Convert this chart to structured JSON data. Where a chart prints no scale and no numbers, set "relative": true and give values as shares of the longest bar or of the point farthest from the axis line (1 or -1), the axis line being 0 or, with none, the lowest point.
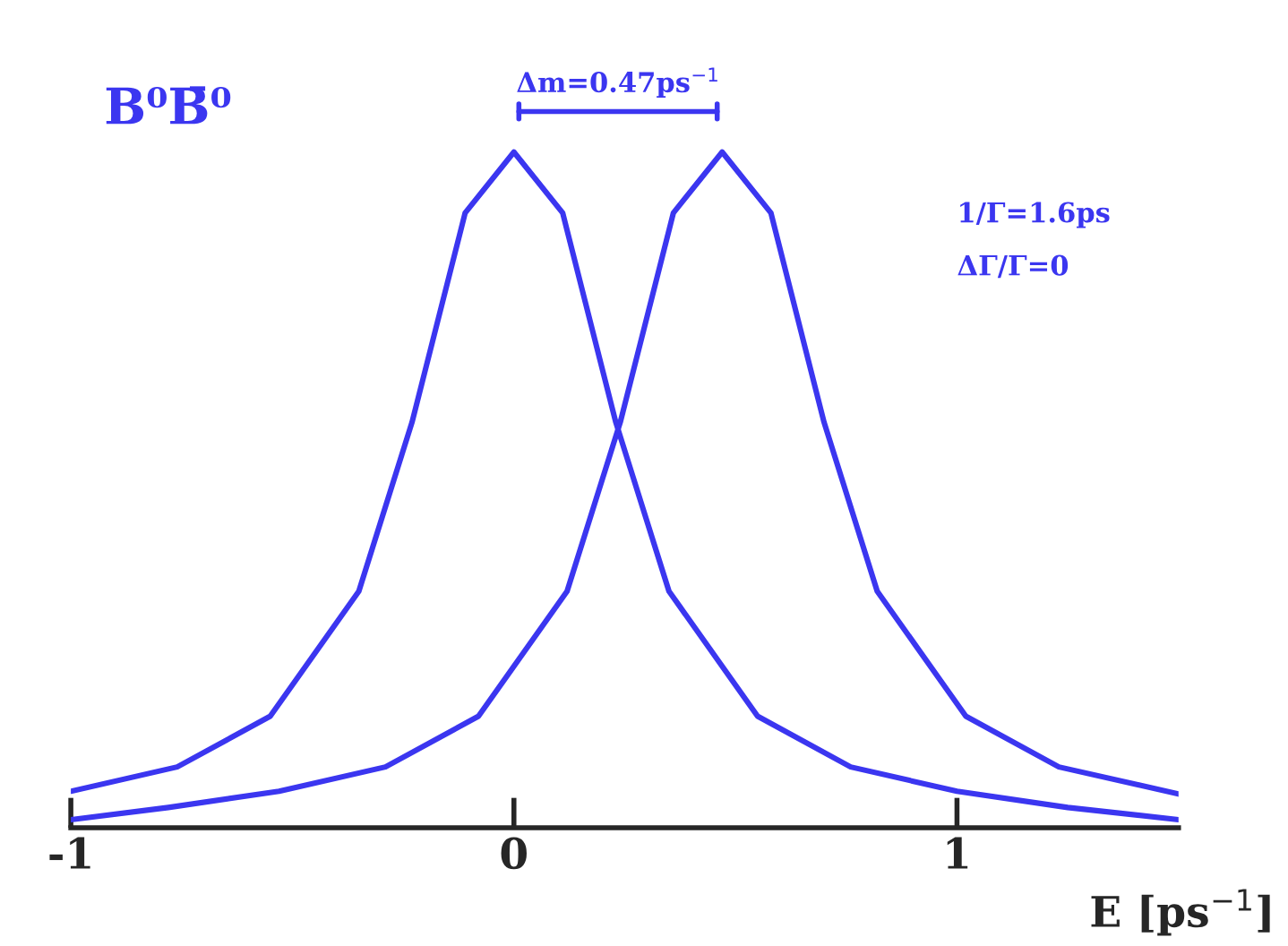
{
  "chart_data": {
    "type": "line",
    "relative": true,
    "title": "B⁰B̄⁰",
    "xlabel": "E [ps$^{−1}$]",
    "xlim": [
      -1,
      1.5
    ],
    "xticks": [
      -1,
      0,
      1
    ],
    "tick_labels": "x",
    "grid": false,
    "legend": false,
    "marker": "none",
    "line_style": "solid",
    "annotations": [
      "Δm=0.47ps$^{−1}$",
      "1/Γ=1.6ps",
      "ΔΓ/Γ=0"
    ],
    "series": [
      {
        "color": "#3b36f0",
        "x": [
          -1,
          -0.76,
          -0.55,
          -0.35,
          -0.23,
          -0.11,
          0,
          0.11,
          0.23,
          0.35,
          0.55,
          0.76,
          1.0,
          1.25,
          1.5
        ],
        "values": [
          0.054,
          0.09,
          0.165,
          0.35,
          0.6,
          0.91,
          1,
          0.91,
          0.6,
          0.35,
          0.165,
          0.09,
          0.054,
          0.03,
          0.012
        ]
      },
      {
        "color": "#3b36f0",
        "x": [
          -1,
          -0.78,
          -0.53,
          -0.29,
          -0.08,
          0.12,
          0.24,
          0.36,
          0.47,
          0.58,
          0.7,
          0.82,
          1.02,
          1.23,
          1.5
        ],
        "values": [
          0.012,
          0.03,
          0.054,
          0.09,
          0.165,
          0.35,
          0.6,
          0.91,
          1,
          0.91,
          0.6,
          0.35,
          0.165,
          0.09,
          0.05
        ]
      }
    ]
  }
}
